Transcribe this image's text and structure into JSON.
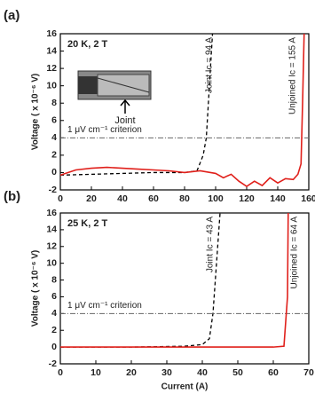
{
  "chart_data": [
    {
      "type": "line",
      "panel_label": "(a)",
      "condition": "20 K, 2 T",
      "inset_label": "Joint",
      "ylabel": "Voltage ( x 10⁻⁶ V)",
      "criterion": 4,
      "criterion_label": "1 μV cm⁻¹ criterion",
      "annotations": [
        "Joint Ic = 94 A",
        "Unjoined Ic = 155 A"
      ],
      "xlim": [
        0,
        160
      ],
      "xticks": [
        0,
        20,
        40,
        60,
        80,
        100,
        120,
        140,
        160
      ],
      "ylim": [
        -2,
        16
      ],
      "yticks": [
        -2,
        0,
        2,
        4,
        6,
        8,
        10,
        12,
        14,
        16
      ],
      "series": [
        {
          "color": "#000000",
          "style": "dashed",
          "x": [
            0,
            20,
            40,
            60,
            80,
            88,
            92,
            94,
            96,
            98
          ],
          "values": [
            -0.3,
            -0.2,
            -0.1,
            0,
            0,
            0.2,
            2,
            4,
            10,
            16
          ]
        },
        {
          "color": "#e0201b",
          "style": "solid",
          "x": [
            0,
            10,
            20,
            30,
            40,
            50,
            60,
            70,
            80,
            90,
            100,
            105,
            110,
            115,
            120,
            125,
            130,
            135,
            140,
            145,
            150,
            153,
            155,
            156,
            157
          ],
          "values": [
            -0.3,
            0.3,
            0.5,
            0.6,
            0.5,
            0.4,
            0.3,
            0.2,
            0,
            0.2,
            -0.1,
            -0.6,
            -0.2,
            -1,
            -1.6,
            -1,
            -1.5,
            -0.6,
            -1.2,
            -0.7,
            -0.8,
            -0.2,
            1,
            8,
            16
          ]
        }
      ]
    },
    {
      "type": "line",
      "panel_label": "(b)",
      "condition": "25 K, 2 T",
      "ylabel": "Voltage ( x 10⁻⁶ V)",
      "xlabel": "Current (A)",
      "criterion": 4,
      "criterion_label": "1 μV cm⁻¹ criterion",
      "annotations": [
        "Joint Ic = 43 A",
        "Unjoined Ic = 64 A"
      ],
      "xlim": [
        0,
        70
      ],
      "xticks": [
        0,
        10,
        20,
        30,
        40,
        50,
        60,
        70
      ],
      "ylim": [
        -2,
        16
      ],
      "yticks": [
        -2,
        0,
        2,
        4,
        6,
        8,
        10,
        12,
        14,
        16
      ],
      "series": [
        {
          "color": "#000000",
          "style": "dashed",
          "x": [
            0,
            20,
            35,
            40,
            42,
            43,
            44,
            45
          ],
          "values": [
            0,
            0,
            0.1,
            0.3,
            1,
            4,
            10,
            16
          ]
        },
        {
          "color": "#e0201b",
          "style": "solid",
          "x": [
            0,
            20,
            40,
            60,
            63,
            64,
            64.2
          ],
          "values": [
            0,
            0,
            0,
            0,
            0.1,
            6,
            16
          ]
        }
      ]
    }
  ]
}
